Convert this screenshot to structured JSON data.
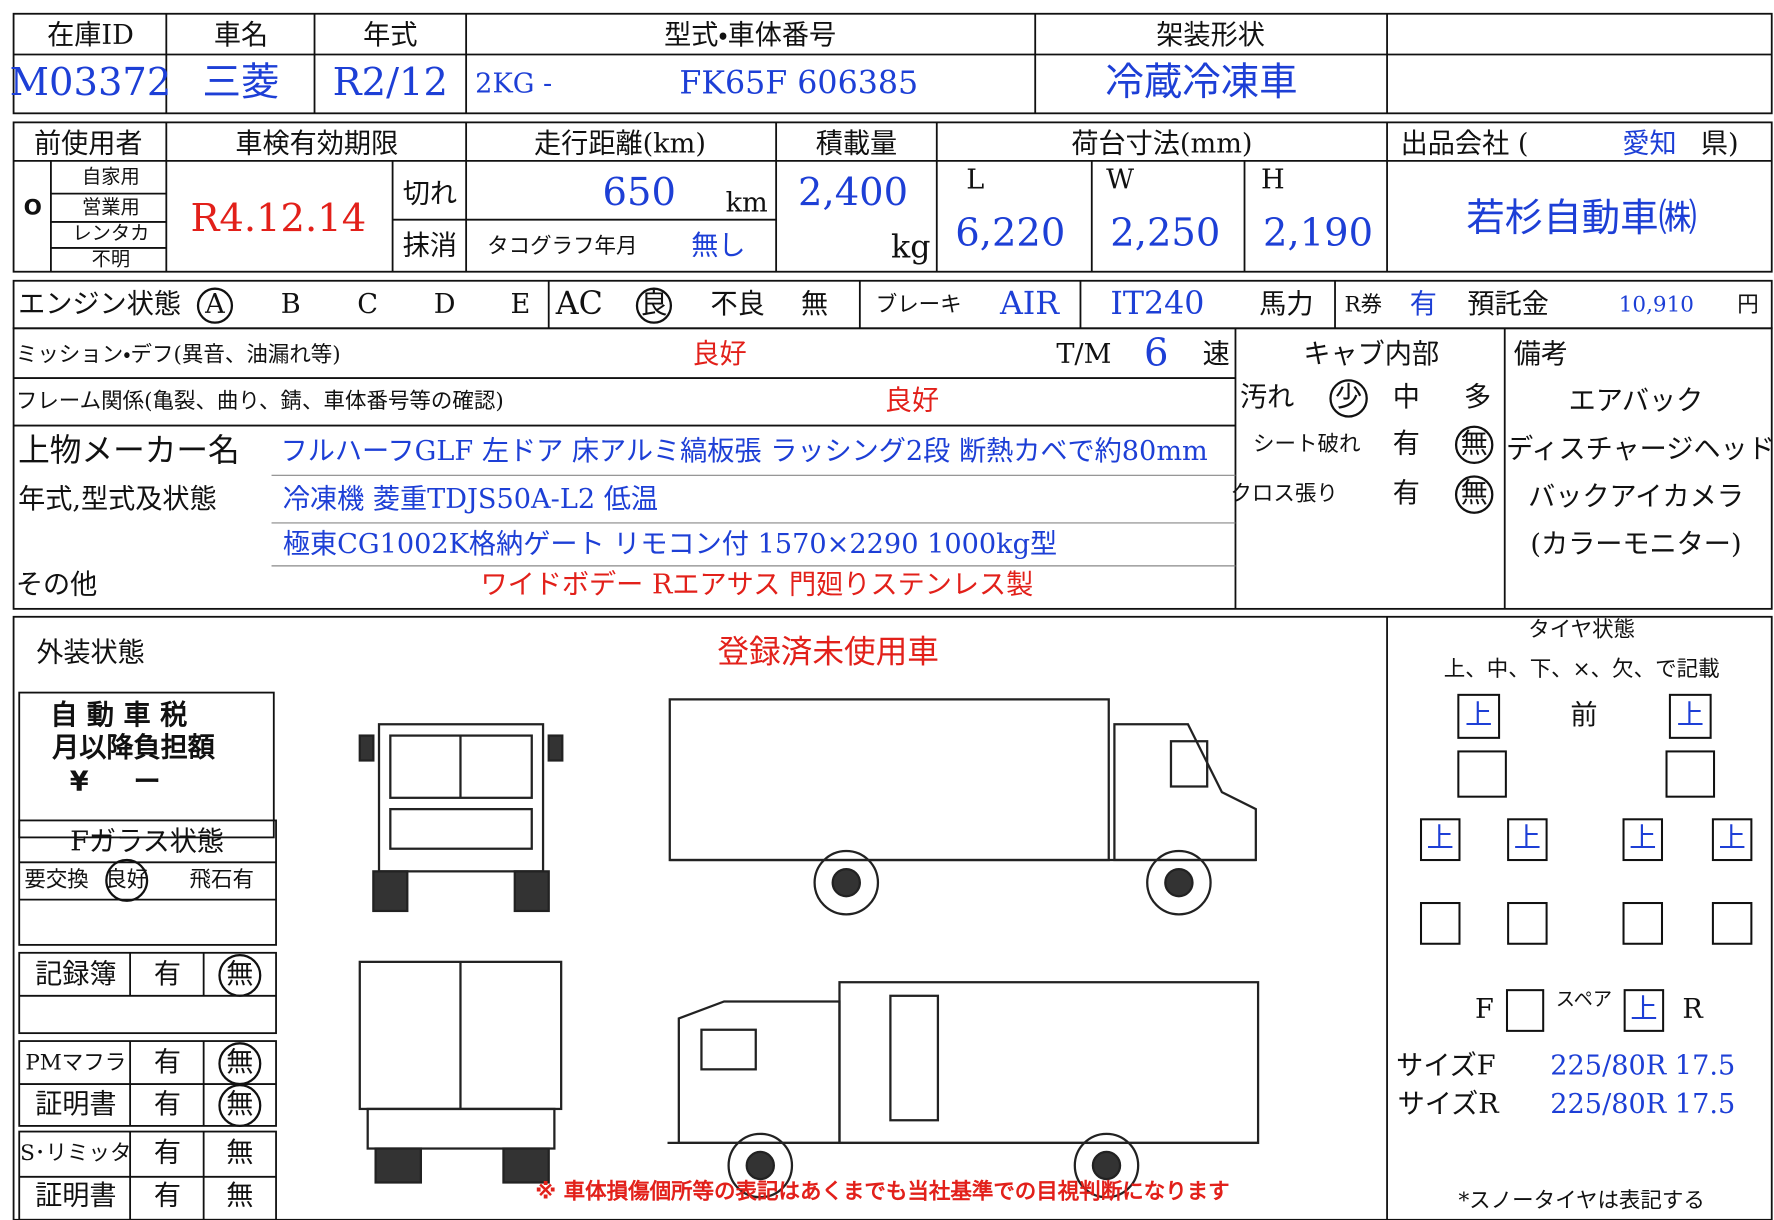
{
  "vehicle": {
    "labels": [
      "在庫ID",
      "車名",
      "年式",
      "型式・車体番号",
      "架装形状"
    ],
    "stock_id": "M03372",
    "make": "三菱",
    "year": "R2/12",
    "model_prefix": "2KG -",
    "serial": "FK65F 606385",
    "body_type": "冷蔵冷凍車"
  },
  "registration": {
    "labels": [
      "前使用者",
      "車検有効期限",
      "走行距離(km)",
      "積載量",
      "荷台寸法(mm)"
    ],
    "previous_use": [
      "自家用",
      "営業用",
      "レンタカ",
      "不明"
    ],
    "previous_use_mark": "O",
    "inspection_expiry": "R4.12.14",
    "expired_label": "切れ",
    "cancelled_label": "抹消",
    "mileage": "650",
    "mileage_unit": "km",
    "tachograph_label": "タコグラフ年月",
    "tachograph": "無し",
    "capacity": "2,400",
    "capacity_unit": "kg",
    "bed": {
      "L_label": "L",
      "W_label": "W",
      "H_label": "H",
      "L": "6,220",
      "W": "2,250",
      "H": "2,190"
    },
    "company_label": "出品会社 (",
    "company_prefecture": "愛知",
    "company_suffix": "県)",
    "company": "若杉自動車㈱"
  },
  "engine": {
    "label": "エンジン状態",
    "grades": [
      "A",
      "B",
      "C",
      "D",
      "E"
    ],
    "ac_label": "AC",
    "ac_options": [
      "良",
      "不良",
      "無"
    ],
    "brake_label": "ブレーキ",
    "brake": "AIR",
    "engine_model": "IT240",
    "hp_label": "馬力",
    "r_ticket_label": "R券",
    "r_ticket": "有",
    "deposit_label": "預託金",
    "deposit": "10,910",
    "deposit_unit": "円"
  },
  "condition": {
    "mission_label": "ミッション・デフ(異音、油漏れ等)",
    "mission": "良好",
    "tm_label": "T/M",
    "tm": "6",
    "tm_unit": "速",
    "frame_label": "フレーム関係(亀裂、曲り、錆、車体番号等の確認)",
    "frame": "良好",
    "body_maker_label": "上物メーカー名",
    "body_maker": "フルハーフGLF 左ドア  床アルミ縞板張  ラッシング2段  断熱カベで約80mm",
    "model_state_label": "年式,型式及状態",
    "model_state": [
      "冷凍機  菱重TDJS50A-L2 低温",
      "極東CG1002K格納ゲート  リモコン付  1570×2290  1000kg型"
    ],
    "other_label": "その他",
    "other": "ワイドボデー  Rエアサス  門廻りステンレス製"
  },
  "cab": {
    "label": "キャブ内部",
    "rows": [
      [
        "汚れ",
        "少",
        "中",
        "多"
      ],
      [
        "シート破れ",
        "有",
        "無"
      ],
      [
        "クロス張り",
        "有",
        "無"
      ]
    ]
  },
  "remarks": {
    "label": "備考",
    "items": [
      "エアバック",
      "ディスチャージヘッド",
      "バックアイカメラ",
      "(カラーモニター)"
    ]
  },
  "exterior": {
    "label": "外装状態",
    "status": "登録済未使用車",
    "tax": [
      "自 動 車 税",
      "月以降負担額",
      "¥",
      "ー"
    ],
    "glass": {
      "label": "Fガラス状態",
      "options": [
        "要交換",
        "良好",
        "飛石有"
      ]
    },
    "record_book": [
      "記録簿",
      "有",
      "無"
    ],
    "pm_muffler": [
      "PMマフラ",
      "有",
      "無"
    ],
    "pm_certificate": [
      "証明書",
      "有",
      "無"
    ],
    "speed_limiter": [
      "S･リミッタ",
      "有",
      "無"
    ],
    "limiter_certificate": [
      "証明書",
      "有",
      "無"
    ],
    "notice": "※ 車体損傷個所等の表記はあくまでも当社基準での目視判断になります"
  },
  "tires": {
    "label": "タイヤ状態",
    "instruction": "上、中、下、×、欠、で記載",
    "front_label": "前",
    "front": [
      "上",
      "上"
    ],
    "rear": [
      "上",
      "上",
      "上",
      "上"
    ],
    "spare_f": "F",
    "spare_label": "スペア",
    "spare": "上",
    "spare_r": "R",
    "size_f_label": "サイズF",
    "size_f": "225/80R 17.5",
    "size_r_label": "サイズR",
    "size_r": "225/80R 17.5",
    "note": "*スノータイヤは表記する"
  }
}
